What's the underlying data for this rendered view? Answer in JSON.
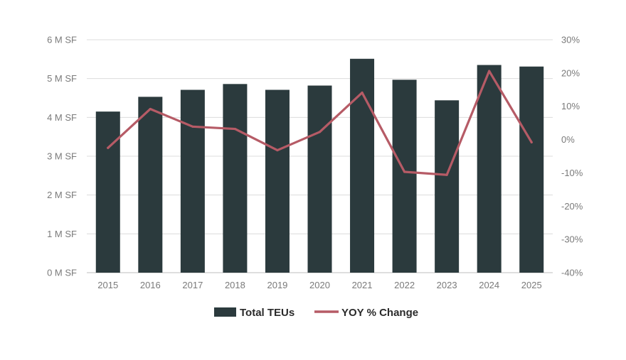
{
  "chart_data": {
    "type": "bar",
    "title": "",
    "xlabel": "",
    "ylabel": "",
    "categories": [
      "2015",
      "2016",
      "2017",
      "2018",
      "2019",
      "2020",
      "2021",
      "2022",
      "2023",
      "2024",
      "2025"
    ],
    "series": [
      {
        "name": "Total TEUs",
        "type": "bar",
        "axis": "left",
        "color": "#2b3a3d",
        "values": [
          4.15,
          4.53,
          4.71,
          4.86,
          4.71,
          4.82,
          5.51,
          4.97,
          4.44,
          5.35,
          5.31
        ]
      },
      {
        "name": "YOY % Change",
        "type": "line",
        "axis": "right",
        "color": "#b65b66",
        "values": [
          -2.5,
          9.2,
          3.9,
          3.2,
          -3.2,
          2.3,
          14.1,
          -9.7,
          -10.6,
          20.6,
          -0.8
        ]
      }
    ],
    "y_left": {
      "ylim": [
        0,
        6
      ],
      "ticks": [
        0,
        1,
        2,
        3,
        4,
        5,
        6
      ],
      "tick_labels": [
        "0 M SF",
        "1 M SF",
        "2 M SF",
        "3 M SF",
        "4 M SF",
        "5 M SF",
        "6 M SF"
      ]
    },
    "y_right": {
      "ylim": [
        -40,
        30
      ],
      "ticks": [
        -40,
        -30,
        -20,
        -10,
        0,
        10,
        20,
        30
      ],
      "tick_labels": [
        "-40%",
        "-30%",
        "-20%",
        "-10%",
        "0%",
        "10%",
        "20%",
        "30%"
      ]
    },
    "grid": true,
    "legend": {
      "position": "bottom-center",
      "entries": [
        "Total TEUs",
        "YOY % Change"
      ]
    }
  }
}
